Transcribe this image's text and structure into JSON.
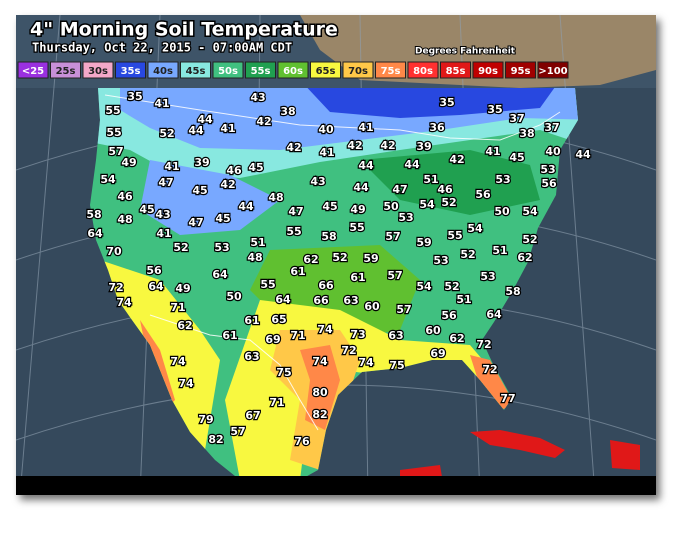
{
  "header": {
    "title": "4\" Morning Soil Temperature",
    "subtitle": "Thursday, Oct 22, 2015 - 07:00AM CDT",
    "units": "Degrees Fahrenheit"
  },
  "legend": [
    {
      "label": "<25",
      "color": "#9a30e0"
    },
    {
      "label": "25s",
      "color": "#c890d8"
    },
    {
      "label": "30s",
      "color": "#f4a8c8"
    },
    {
      "label": "35s",
      "color": "#2848e0"
    },
    {
      "label": "40s",
      "color": "#78a8ff"
    },
    {
      "label": "45s",
      "color": "#88e8e0"
    },
    {
      "label": "50s",
      "color": "#40c080"
    },
    {
      "label": "55s",
      "color": "#20a050"
    },
    {
      "label": "60s",
      "color": "#60c030"
    },
    {
      "label": "65s",
      "color": "#f8f840"
    },
    {
      "label": "70s",
      "color": "#ffc848"
    },
    {
      "label": "75s",
      "color": "#ff8848"
    },
    {
      "label": "80s",
      "color": "#ff3030"
    },
    {
      "label": "85s",
      "color": "#e01818"
    },
    {
      "label": "90s",
      "color": "#c00000"
    },
    {
      "label": "95s",
      "color": "#a00000"
    },
    {
      "label": ">100",
      "color": "#800000"
    }
  ],
  "stations": [
    35,
    41,
    43,
    38,
    35,
    35,
    37,
    37,
    55,
    44,
    42,
    40,
    41,
    36,
    38,
    55,
    52,
    44,
    41,
    42,
    42,
    42,
    39,
    40,
    44,
    57,
    41,
    41,
    45,
    49,
    41,
    39,
    46,
    45,
    44,
    44,
    42,
    53,
    56,
    54,
    47,
    45,
    42,
    43,
    51,
    53,
    46,
    48,
    44,
    47,
    46,
    56,
    58,
    45,
    43,
    47,
    45,
    44,
    47,
    45,
    49,
    50,
    53,
    54,
    52,
    50,
    54,
    48,
    64,
    41,
    52,
    53,
    51,
    55,
    58,
    55,
    57,
    59,
    55,
    54,
    52,
    70,
    48,
    62,
    52,
    59,
    53,
    52,
    51,
    62,
    56,
    64,
    61,
    61,
    57,
    53,
    72,
    64,
    49,
    50,
    55,
    66,
    54,
    52,
    51,
    58,
    74,
    71,
    64,
    66,
    63,
    60,
    57,
    56,
    64,
    62,
    61,
    65,
    71,
    74,
    73,
    63,
    60,
    62,
    61,
    69,
    72,
    74,
    63,
    72,
    74,
    75,
    69,
    74,
    75,
    74,
    72,
    80,
    77,
    71,
    79,
    67,
    82,
    82,
    57,
    76
  ]
}
